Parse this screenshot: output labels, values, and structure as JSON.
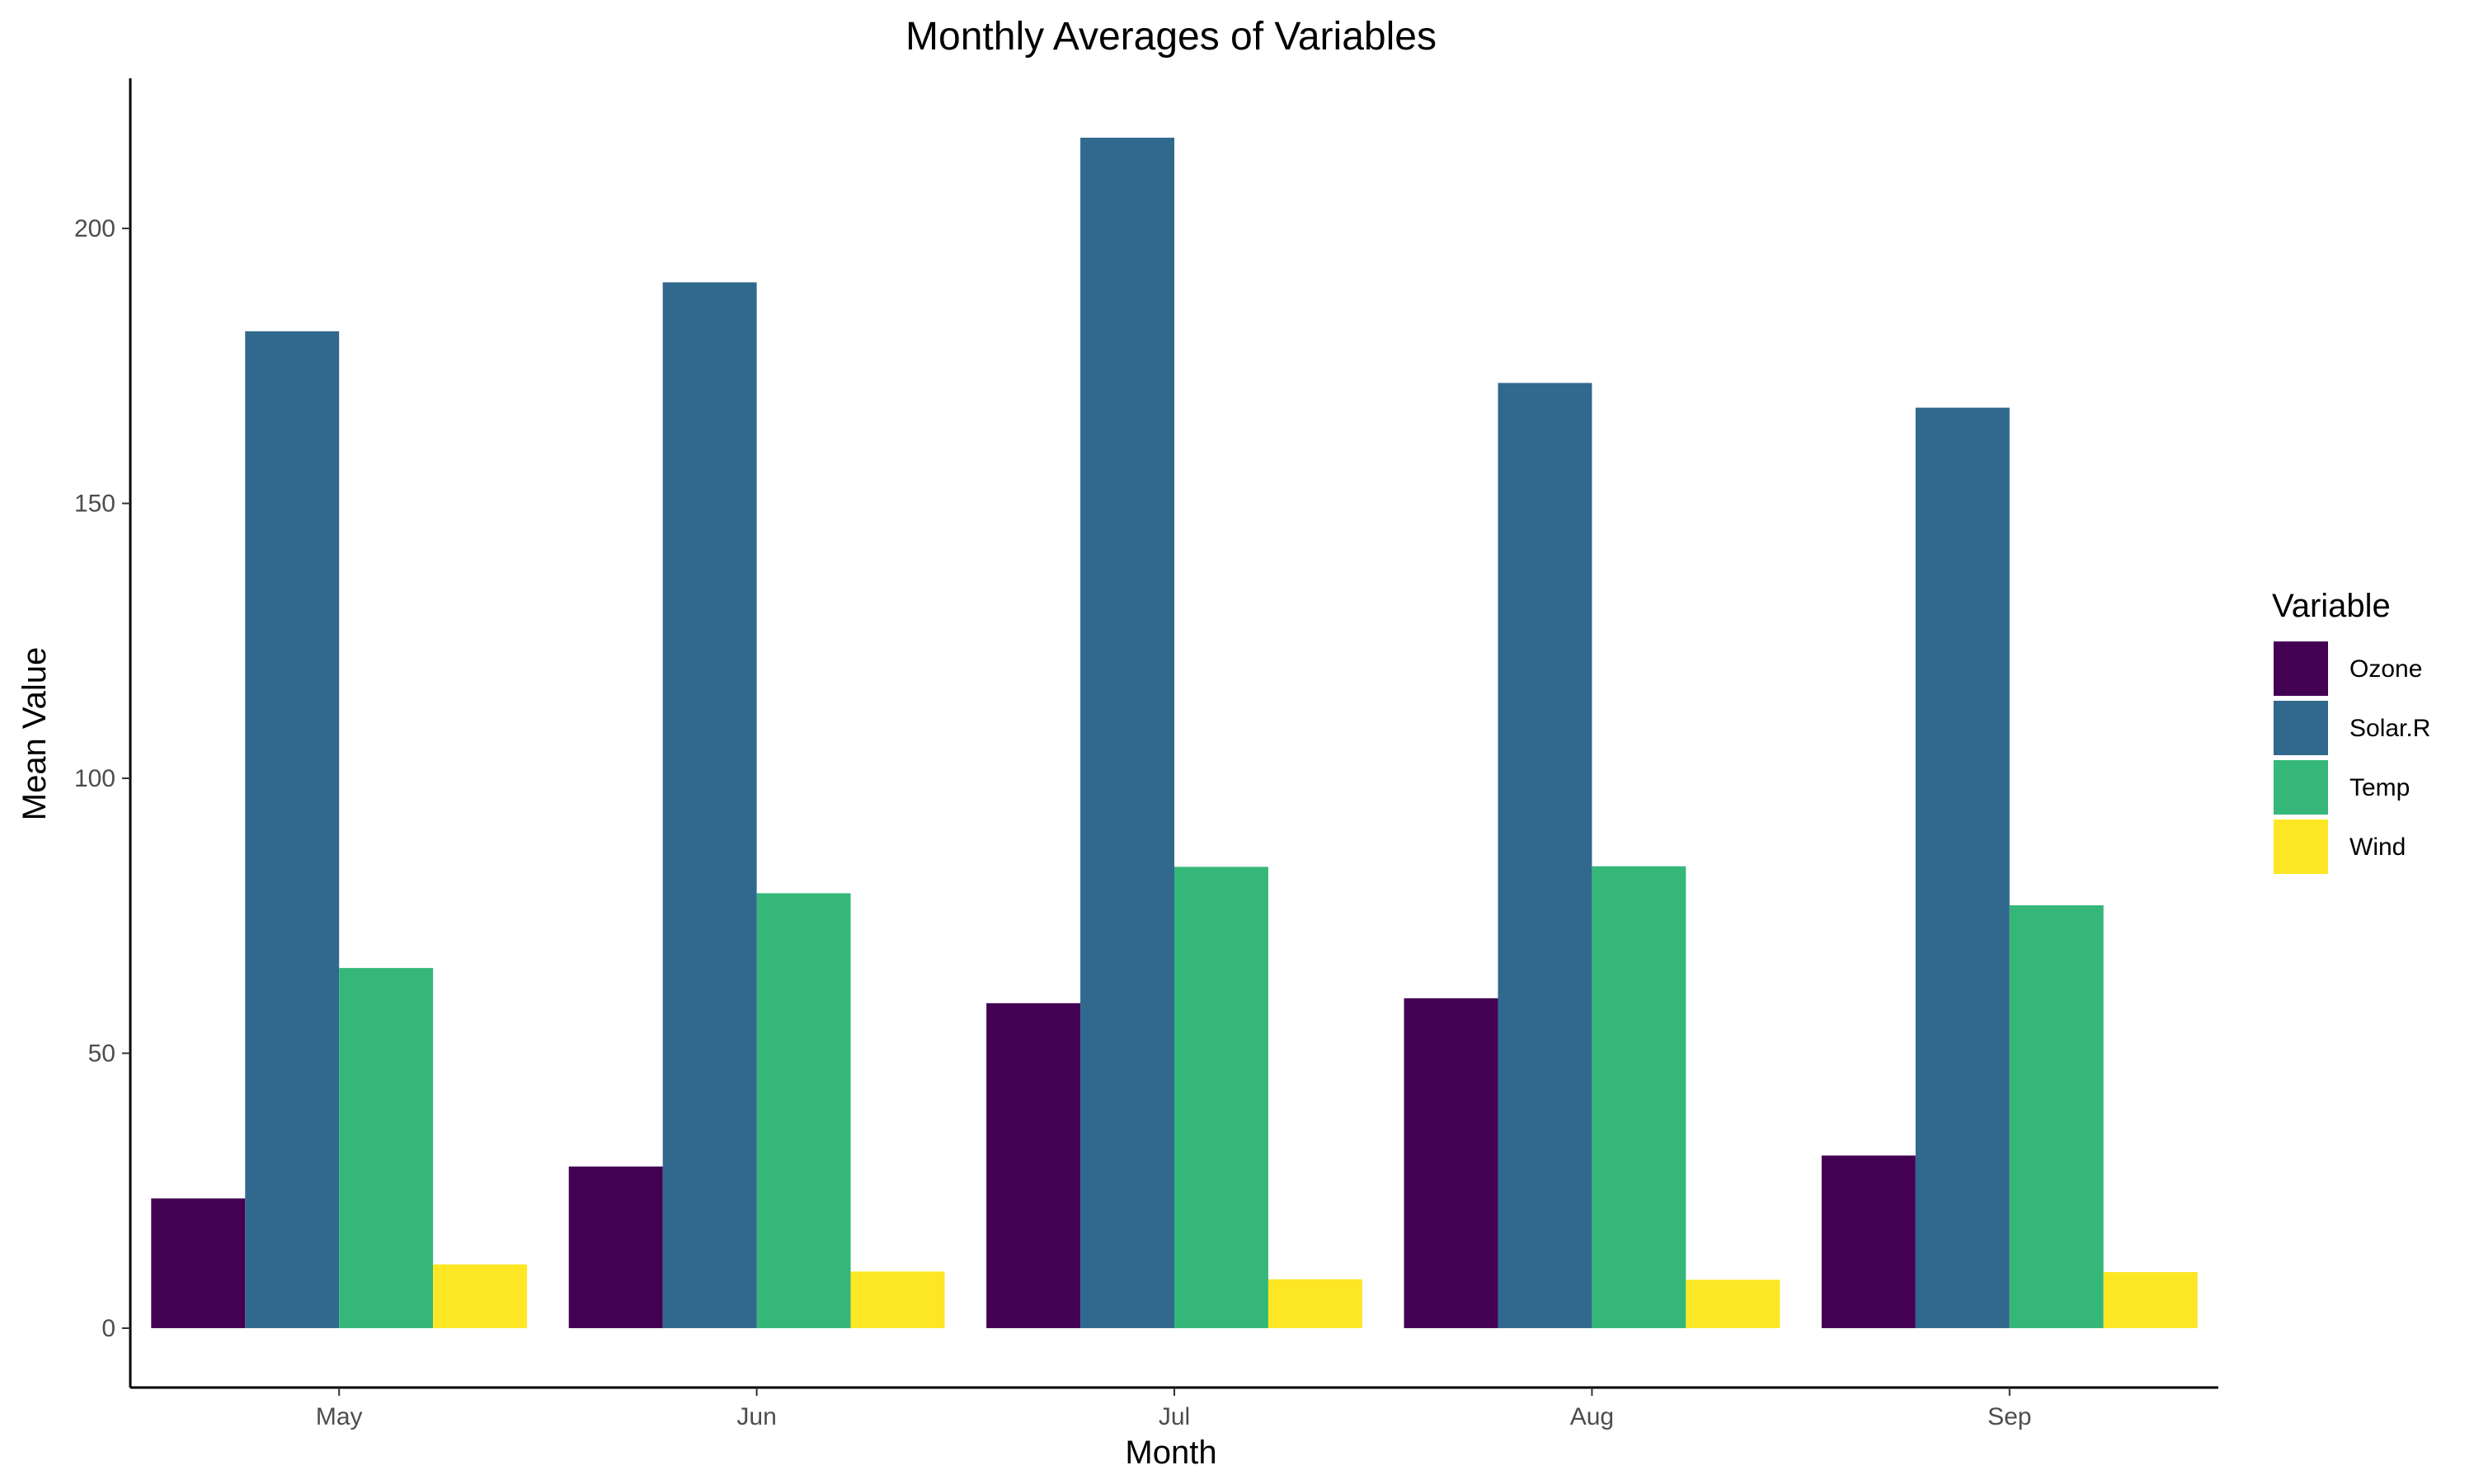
{
  "chart_data": {
    "type": "bar",
    "title": "Monthly Averages of Variables",
    "xlabel": "Month",
    "ylabel": "Mean Value",
    "categories": [
      "May",
      "Jun",
      "Jul",
      "Aug",
      "Sep"
    ],
    "series": [
      {
        "name": "Ozone",
        "color": "#440154",
        "values": [
          23.6,
          29.4,
          59.1,
          60.0,
          31.4
        ]
      },
      {
        "name": "Solar.R",
        "color": "#31688E",
        "values": [
          181.3,
          190.2,
          216.5,
          171.9,
          167.4
        ]
      },
      {
        "name": "Temp",
        "color": "#35B779",
        "values": [
          65.5,
          79.1,
          83.9,
          84.0,
          76.9
        ]
      },
      {
        "name": "Wind",
        "color": "#FDE725",
        "values": [
          11.6,
          10.3,
          8.9,
          8.8,
          10.2
        ]
      }
    ],
    "yticks": [
      0,
      50,
      100,
      150,
      200
    ],
    "ylim": [
      -10.8,
      227.3
    ],
    "grid": false,
    "legend": {
      "title": "Variable",
      "position": "right"
    }
  }
}
